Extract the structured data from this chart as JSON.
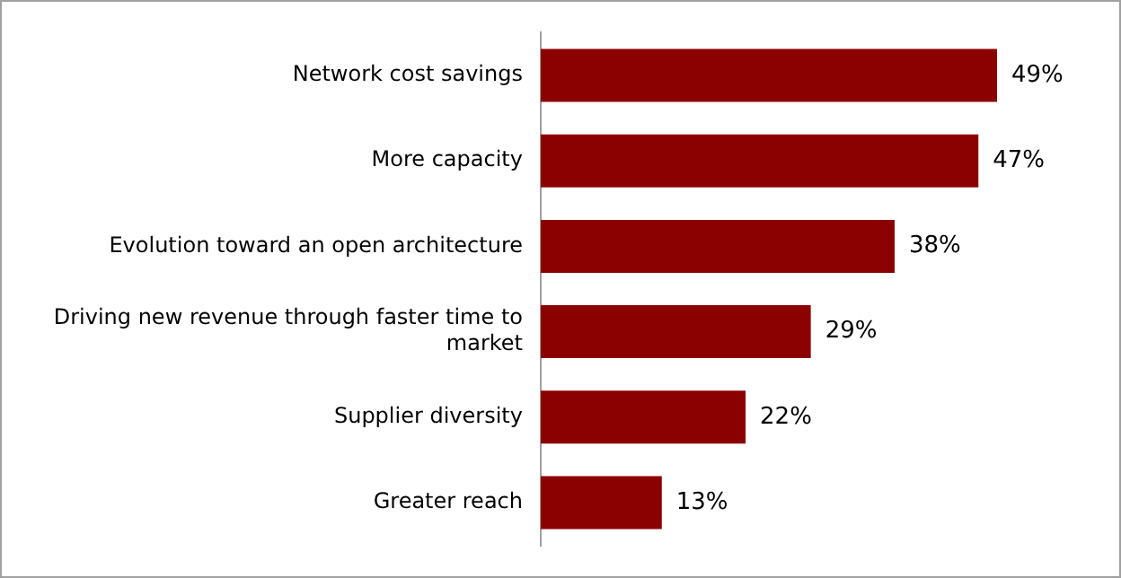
{
  "chart_data": {
    "type": "bar",
    "orientation": "horizontal",
    "categories": [
      "Network cost savings",
      "More capacity",
      "Evolution toward an open architecture",
      "Driving new revenue through faster time to market",
      "Supplier diversity",
      "Greater reach"
    ],
    "values": [
      49,
      47,
      38,
      29,
      22,
      13
    ],
    "value_labels": [
      "49%",
      "47%",
      "38%",
      "29%",
      "22%",
      "13%"
    ],
    "color": "#8b0000",
    "grid": false,
    "legend": false
  }
}
